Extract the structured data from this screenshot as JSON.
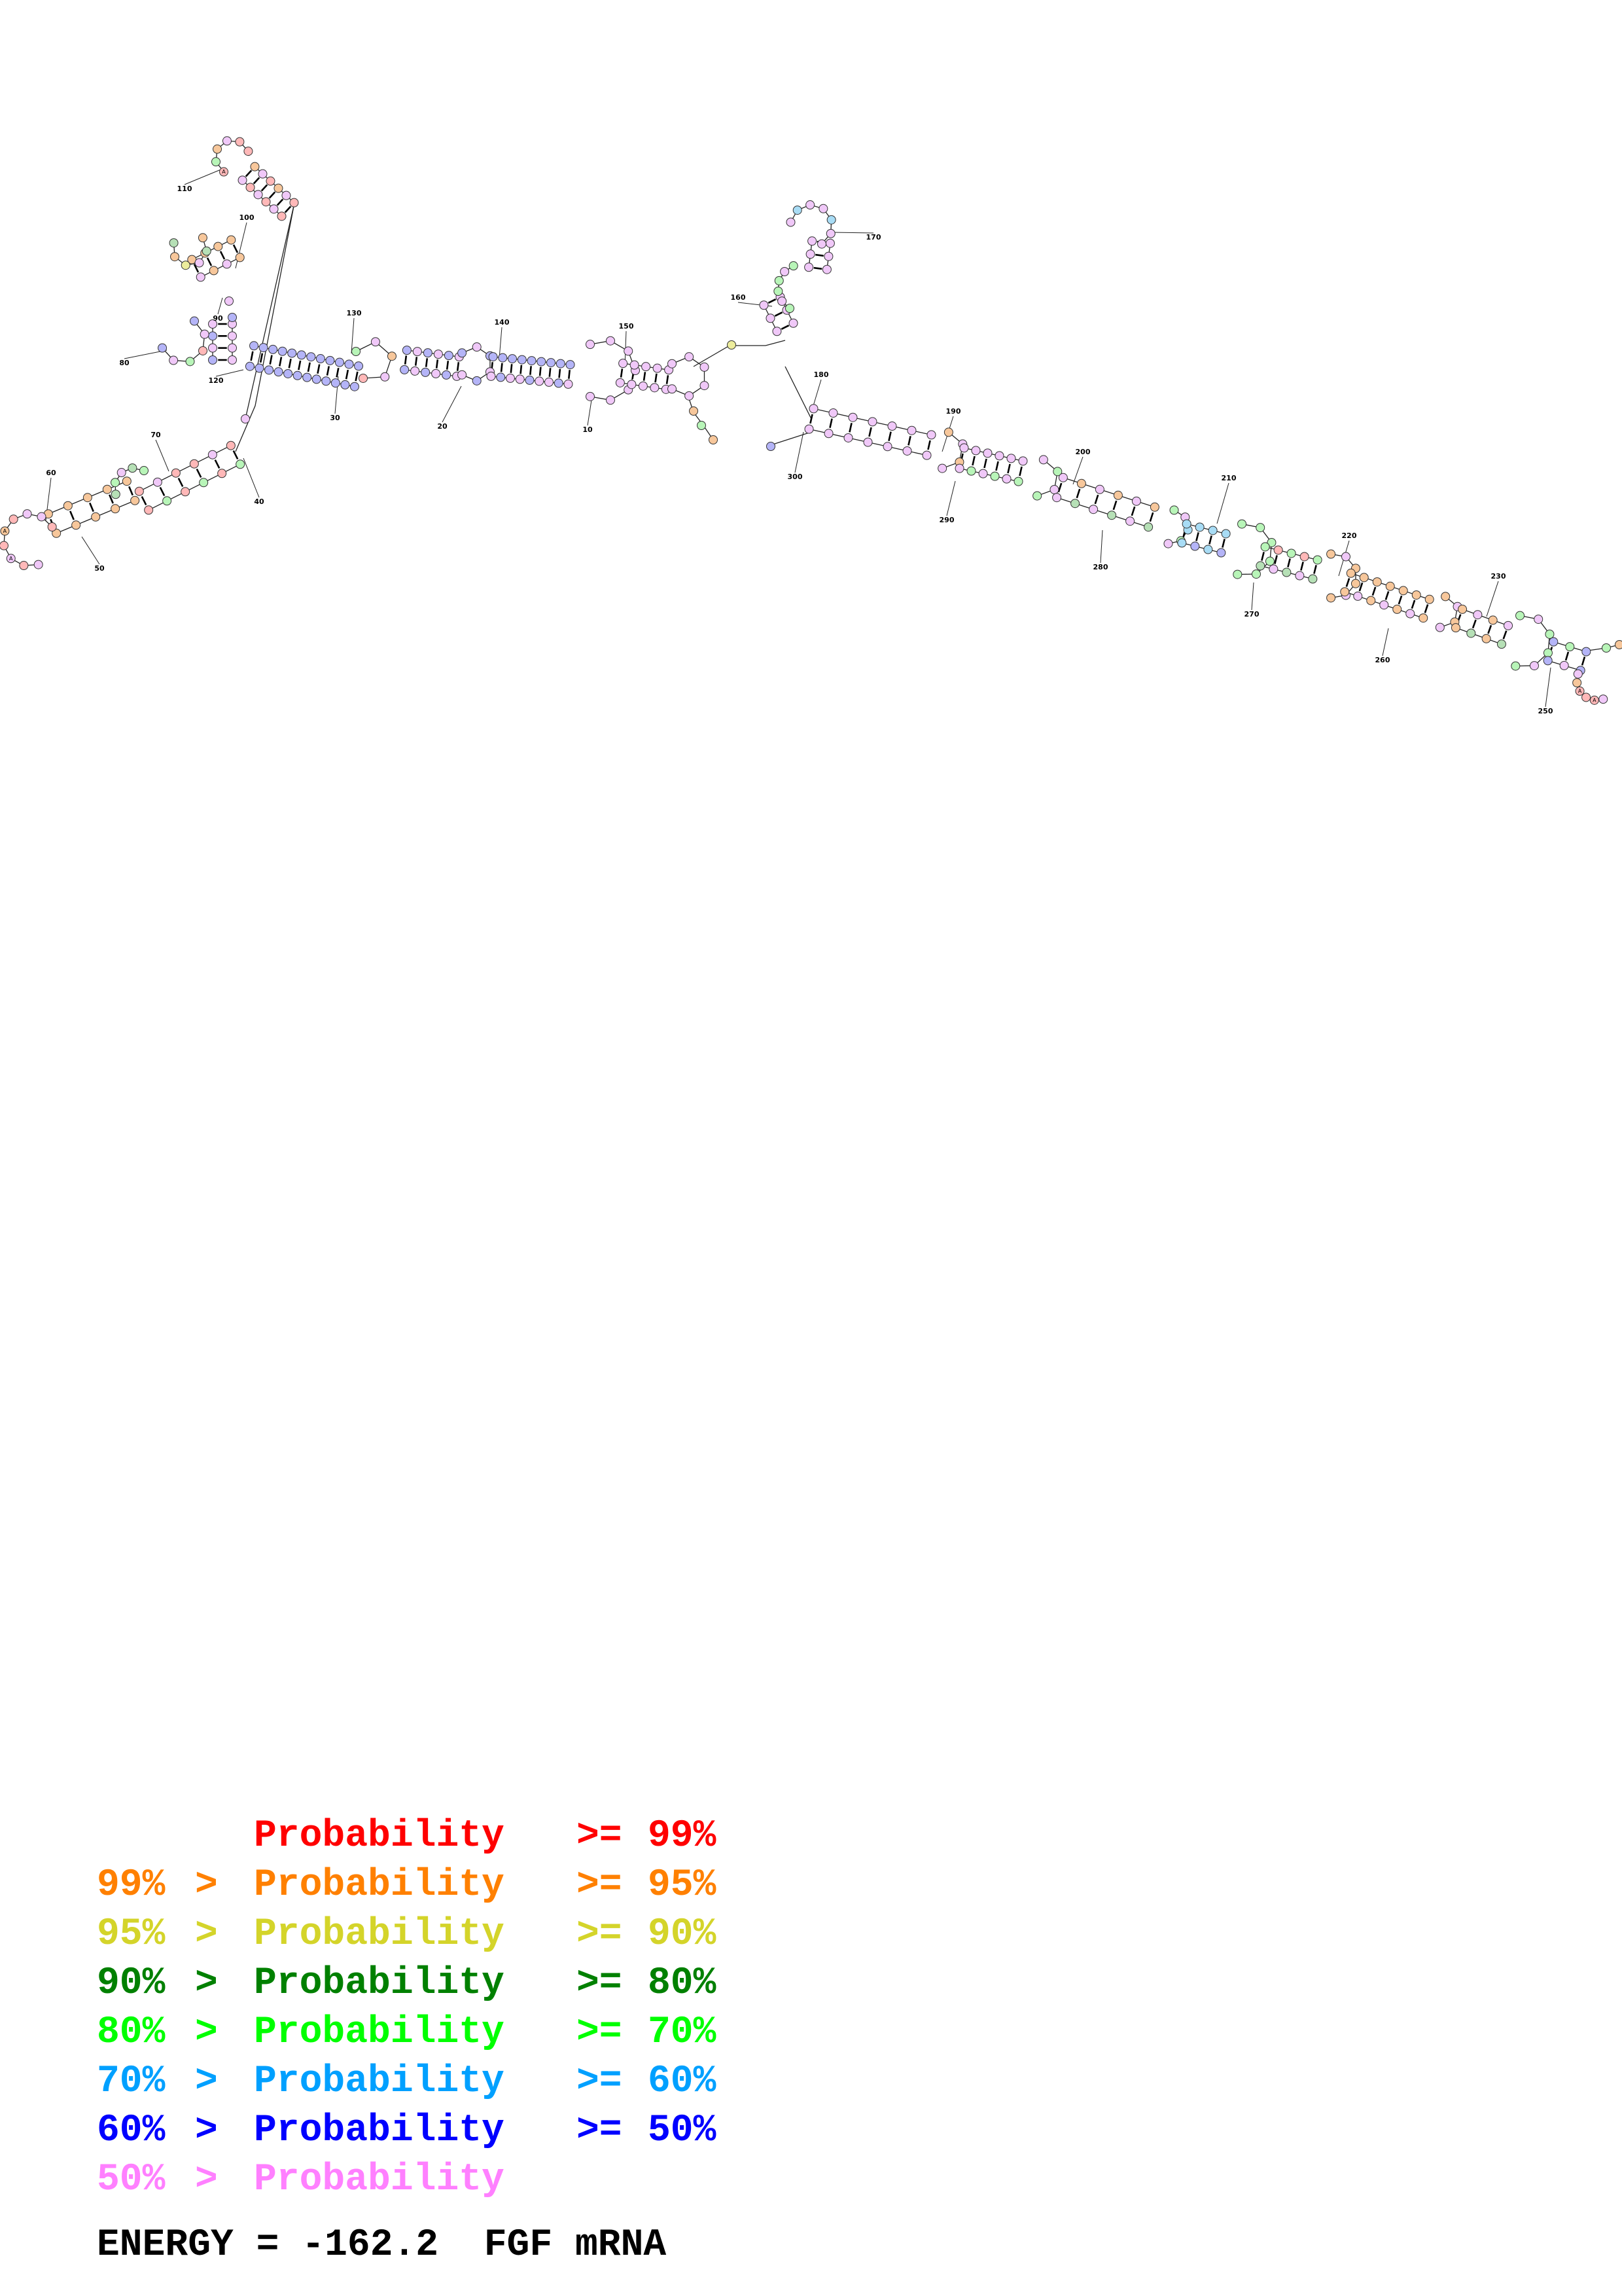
{
  "legend": [
    {
      "lower": "",
      "word": "Probability",
      "op": ">=",
      "upper": "99%",
      "color": "#ff0000"
    },
    {
      "lower": "99%",
      "word": "Probability",
      "op": ">=",
      "upper": "95%",
      "color": "#ff8000"
    },
    {
      "lower": "95%",
      "word": "Probability",
      "op": ">=",
      "upper": "90%",
      "color": "#d4d42a"
    },
    {
      "lower": "90%",
      "word": "Probability",
      "op": ">=",
      "upper": "80%",
      "color": "#008000"
    },
    {
      "lower": "80%",
      "word": "Probability",
      "op": ">=",
      "upper": "70%",
      "color": "#00ff00"
    },
    {
      "lower": "70%",
      "word": "Probability",
      "op": ">=",
      "upper": "60%",
      "color": "#00a0ff"
    },
    {
      "lower": "60%",
      "word": "Probability",
      "op": ">=",
      "upper": "50%",
      "color": "#0000ff"
    },
    {
      "lower": "50%",
      "word": "Probability",
      "op": "",
      "upper": "",
      "color": "#ff80ff"
    }
  ],
  "legend_gt": ">",
  "energy": {
    "label": "ENERGY",
    "eq": "=",
    "value": "-162.2",
    "name": "FGF mRNA"
  },
  "index_labels": [
    "10",
    "20",
    "30",
    "40",
    "50",
    "60",
    "70",
    "80",
    "90",
    "100",
    "110",
    "120",
    "130",
    "140",
    "150",
    "160",
    "170",
    "180",
    "190",
    "200",
    "210",
    "220",
    "230",
    "250",
    "260",
    "270",
    "280",
    "290",
    "300"
  ],
  "node_fill_colors": {
    "red": "#ffb8b8",
    "orange": "#f7c79b",
    "yellow": "#ecec9c",
    "dark-green": "#b6e0b6",
    "green": "#b8f5b8",
    "cyan": "#a8dcf5",
    "blue": "#b4b4f7",
    "pink": "#f0c8f8"
  }
}
